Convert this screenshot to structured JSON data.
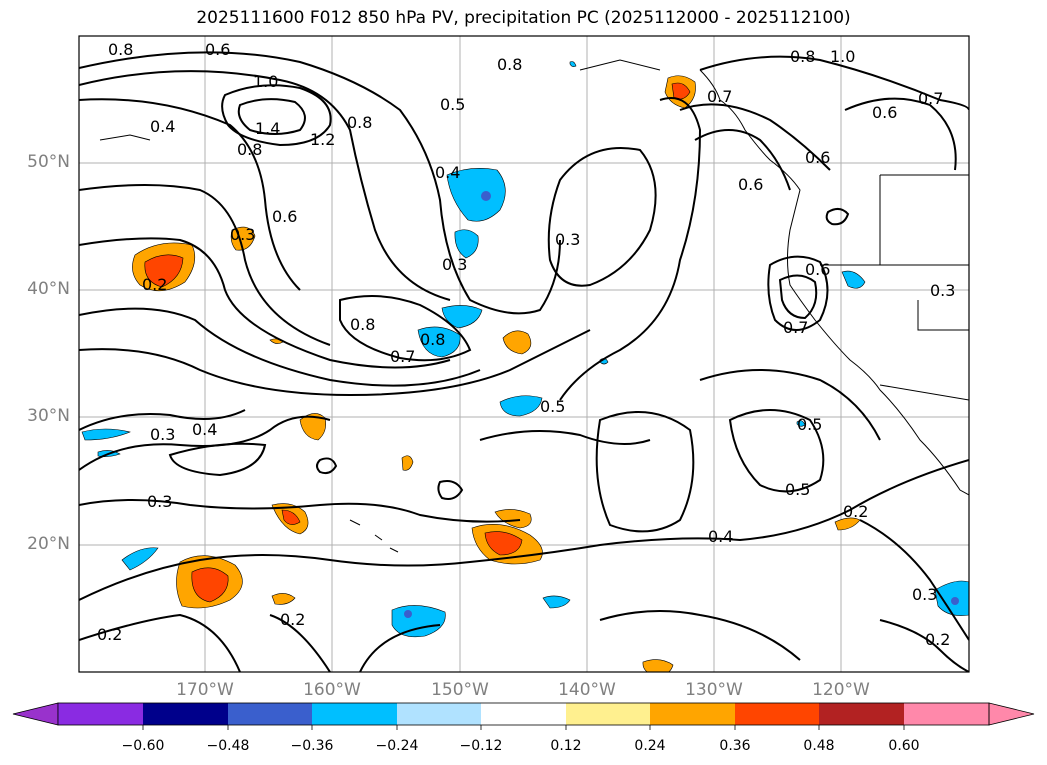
{
  "title": "2025111600 F012 850 hPa PV, precipitation PC (2025112000 - 2025112100)",
  "map": {
    "lat_ticks": [
      "50°N",
      "40°N",
      "30°N",
      "20°N"
    ],
    "lon_ticks": [
      "170°W",
      "160°W",
      "150°W",
      "140°W",
      "130°W",
      "120°W"
    ],
    "grid": true
  },
  "contour_labels": [
    "0.8",
    "0.6",
    "0.8",
    "0.8",
    "1.0",
    "1.0",
    "0.8",
    "0.7",
    "0.6",
    "0.7",
    "0.6",
    "0.4",
    "1.4",
    "1.2",
    "0.8",
    "0.5",
    "0.6",
    "0.4",
    "0.6",
    "0.3",
    "0.3",
    "0.2",
    "0.3",
    "0.8",
    "0.7",
    "0.8",
    "0.6",
    "0.7",
    "0.3",
    "0.5",
    "0.3",
    "0.4",
    "0.5",
    "0.5",
    "0.3",
    "0.4",
    "0.2",
    "0.2",
    "0.2",
    "0.3",
    "0.2"
  ],
  "colorbar": {
    "colors": [
      "#9932cc",
      "#8a2be2",
      "#00008b",
      "#3a5fcd",
      "#00bfff",
      "#b0e2ff",
      "#ffffff",
      "#fff08f",
      "#ffa500",
      "#ff4500",
      "#b22222",
      "#ff88aa"
    ],
    "ticks": [
      "−0.60",
      "−0.48",
      "−0.36",
      "−0.24",
      "−0.12",
      "0.12",
      "0.24",
      "0.36",
      "0.48",
      "0.60"
    ]
  }
}
